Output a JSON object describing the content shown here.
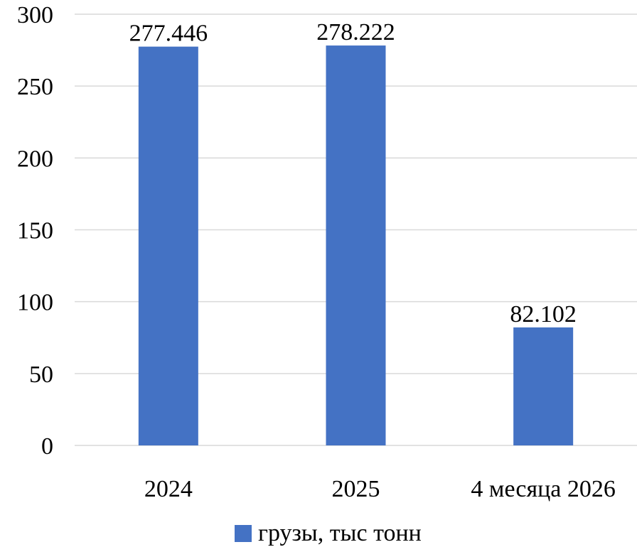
{
  "chart_data": {
    "type": "bar",
    "title": "",
    "xlabel": "",
    "ylabel": "",
    "categories": [
      "2024",
      "2025",
      "4 месяца 2026"
    ],
    "series": [
      {
        "name": "грузы, тыс тонн",
        "values": [
          277.446,
          278.222,
          82.102
        ],
        "value_labels": [
          "277.446",
          "278.222",
          "82.102"
        ],
        "color": "#4472c4"
      }
    ],
    "ylim": [
      0,
      300
    ],
    "yticks": [
      "0",
      "50",
      "100",
      "150",
      "200",
      "250",
      "300"
    ],
    "grid": true,
    "legend_position": "bottom"
  }
}
